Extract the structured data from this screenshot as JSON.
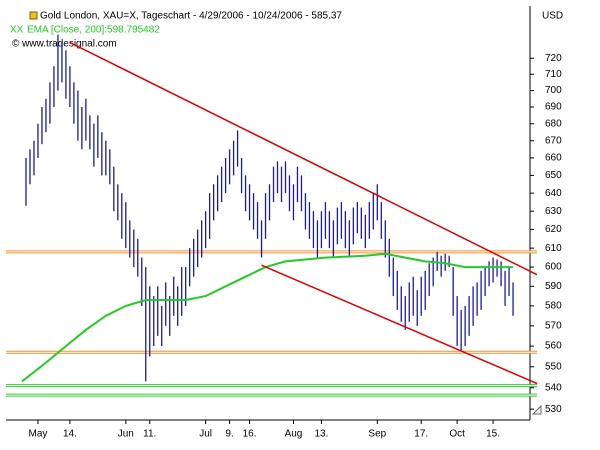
{
  "chart_data": {
    "type": "ohlc",
    "title": "Gold London, XAU=X, Tageschart - 4/29/2006 - 10/24/2006 - 585.37",
    "credit": "© www.tradesignal.com",
    "y_unit": "USD",
    "log_scale": true,
    "ylim": [
      525,
      751
    ],
    "yticks": [
      530,
      540,
      550,
      560,
      570,
      580,
      590,
      600,
      610,
      620,
      630,
      640,
      650,
      660,
      670,
      680,
      690,
      700,
      710,
      720
    ],
    "xlim": [
      -1,
      128
    ],
    "xticks": [
      {
        "value": 3,
        "label": "May"
      },
      {
        "value": 11,
        "label": "14."
      },
      {
        "value": 25,
        "label": "Jun"
      },
      {
        "value": 31,
        "label": "11."
      },
      {
        "value": 45,
        "label": "Jul"
      },
      {
        "value": 51,
        "label": "9."
      },
      {
        "value": 56,
        "label": "16."
      },
      {
        "value": 67,
        "label": "Aug"
      },
      {
        "value": 74,
        "label": "13."
      },
      {
        "value": 88,
        "label": "Sep"
      },
      {
        "value": 99,
        "label": "17."
      },
      {
        "value": 108,
        "label": "Oct"
      },
      {
        "value": 117,
        "label": "15."
      }
    ],
    "series": [
      {
        "color": "#1a1aa8",
        "high": [
          660,
          665,
          670,
          680,
          690,
          695,
          705,
          715,
          735,
          730,
          725,
          715,
          705,
          700,
          690,
          695,
          685,
          680,
          685,
          675,
          670,
          665,
          655,
          645,
          640,
          635,
          625,
          620,
          615,
          605,
          600,
          590,
          585,
          590,
          580,
          592,
          585,
          595,
          590,
          600,
          600,
          610,
          615,
          620,
          625,
          630,
          640,
          645,
          650,
          655,
          660,
          665,
          670,
          676,
          660,
          650,
          645,
          640,
          635,
          625,
          640,
          645,
          655,
          658,
          655,
          658,
          650,
          645,
          655,
          650,
          640,
          635,
          630,
          625,
          630,
          635,
          630,
          625,
          632,
          635,
          630,
          625,
          632,
          635,
          632,
          628,
          635,
          640,
          645,
          635,
          625,
          615,
          605,
          598,
          590,
          585,
          592,
          595,
          588,
          595,
          598,
          602,
          605,
          608,
          606,
          607,
          606,
          600,
          585,
          578,
          580,
          585,
          590,
          592,
          598,
          600,
          603,
          605,
          604,
          603,
          598,
          600,
          592
        ],
        "low": [
          633,
          645,
          650,
          660,
          668,
          675,
          680,
          690,
          700,
          705,
          695,
          690,
          680,
          670,
          665,
          670,
          665,
          655,
          660,
          650,
          650,
          645,
          630,
          625,
          615,
          610,
          605,
          600,
          595,
          580,
          543,
          555,
          560,
          565,
          560,
          570,
          565,
          575,
          570,
          575,
          580,
          590,
          595,
          600,
          605,
          610,
          615,
          625,
          630,
          635,
          640,
          645,
          650,
          655,
          640,
          630,
          625,
          620,
          615,
          605,
          615,
          625,
          635,
          640,
          635,
          640,
          630,
          625,
          635,
          630,
          620,
          615,
          610,
          605,
          610,
          615,
          610,
          605,
          612,
          615,
          610,
          605,
          612,
          618,
          615,
          610,
          615,
          620,
          625,
          615,
          605,
          595,
          585,
          578,
          572,
          568,
          572,
          575,
          570,
          575,
          578,
          585,
          590,
          598,
          595,
          598,
          600,
          575,
          560,
          558,
          560,
          565,
          570,
          575,
          578,
          585,
          590,
          592,
          595,
          590,
          580,
          585,
          575
        ]
      }
    ],
    "indicators": [
      {
        "name": "EMA [Close, 200]:598.795482",
        "color": "#22cc22",
        "x": [
          -1,
          5,
          10,
          15,
          20,
          25,
          30,
          40,
          45,
          50,
          55,
          60,
          65,
          75,
          85,
          90,
          95,
          100,
          105,
          110,
          117,
          122
        ],
        "values": [
          543,
          552,
          560,
          568,
          575,
          580,
          583,
          583,
          585,
          590,
          595,
          600,
          603,
          605,
          606,
          607,
          605,
          603,
          602,
          600,
          600,
          600
        ]
      }
    ],
    "trendlines": [
      {
        "color": "#dd0000",
        "x": [
          11,
          128
        ],
        "values": [
          730,
          596
        ]
      },
      {
        "color": "#dd0000",
        "x": [
          59,
          128
        ],
        "values": [
          601,
          542
        ]
      }
    ],
    "levels": [
      {
        "value": 608,
        "color": "#f09030"
      },
      {
        "value": 557,
        "color": "#f09030"
      },
      {
        "value": 541,
        "color": "#33cc33"
      },
      {
        "value": 536.5,
        "color": "#33cc33"
      }
    ]
  }
}
